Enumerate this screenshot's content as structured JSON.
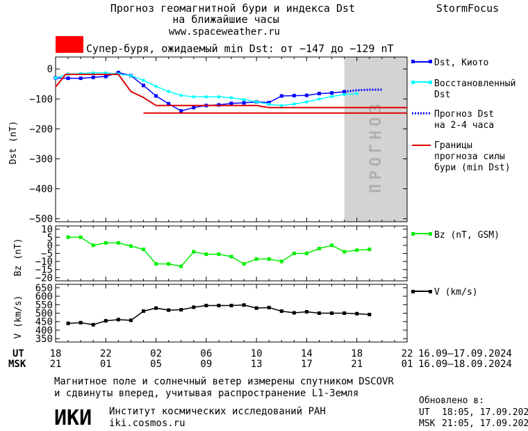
{
  "header": {
    "title_line1": "Прогноз геомагнитной бури и индекса Dst",
    "title_line2": "на ближайшие часы",
    "website": "www.spaceweather.ru",
    "brand": "StormFocus"
  },
  "alert": {
    "label": "Супер-буря, ожидаемый min Dst: от −147 до −129 nT",
    "color": "#ff0000"
  },
  "colors": {
    "dst_kyoto": "#0000ff",
    "dst_reconstructed": "#00ffff",
    "dst_forecast": "#0000ff",
    "limits": "#dd0000",
    "bz": "#00ee00",
    "v": "#000000",
    "forecast_zone": "#d3d3d3",
    "forecast_zone_text": "#b0b0b0"
  },
  "forecast_zone_label": "ПРОГНОЗ",
  "legend": {
    "dst_kyoto": "Dst, Киото",
    "dst_reconstructed_1": "Восстановленный",
    "dst_reconstructed_2": "Dst",
    "forecast_1": "Прогноз Dst",
    "forecast_2": "на 2-4 часа",
    "limits_1": "Границы",
    "limits_2": "прогноза силы",
    "limits_3": "бури (min Dst)",
    "bz": "Bz (nT, GSM)",
    "v": "V (km/s)"
  },
  "time_axis": {
    "ut_label": "UT",
    "msk_label": "MSK",
    "ut_ticks": [
      "18",
      "22",
      "02",
      "06",
      "10",
      "14",
      "18",
      "22"
    ],
    "msk_ticks": [
      "21",
      "01",
      "05",
      "09",
      "13",
      "17",
      "21",
      "01"
    ],
    "ut_range": "16.09–17.09.2024",
    "msk_range": "16.09–18.09.2024"
  },
  "chart_data": [
    {
      "type": "line",
      "panel": "dst",
      "ylabel": "Dst (nT)",
      "ylim": [
        -510,
        40
      ],
      "yticks": [
        0,
        -100,
        -200,
        -300,
        -400,
        -500
      ],
      "x_unit": "hours UT from 18:00 on 16.09.2024",
      "xlim": [
        0,
        28
      ],
      "forecast_zone": [
        23,
        28
      ],
      "series": [
        {
          "name": "Dst, Киото",
          "x": [
            0,
            1,
            2,
            3,
            4,
            5,
            6,
            7,
            8,
            9,
            10,
            11,
            12,
            13,
            14,
            15,
            16,
            17,
            18,
            19,
            20,
            21,
            22,
            23
          ],
          "y": [
            -30,
            -31,
            -31,
            -28,
            -25,
            -12,
            -22,
            -55,
            -90,
            -116,
            -140,
            -129,
            -122,
            -120,
            -115,
            -113,
            -110,
            -112,
            -90,
            -89,
            -88,
            -82,
            -80,
            -76
          ]
        },
        {
          "name": "Восстановленный Dst",
          "x": [
            0,
            1,
            2,
            3,
            4,
            5,
            6,
            7,
            8,
            9,
            10,
            11,
            12,
            13,
            14,
            15,
            16,
            17,
            18,
            19,
            20,
            21,
            22,
            23,
            24
          ],
          "y": [
            -30,
            -17,
            -15,
            -13,
            -13,
            -17,
            -22,
            -38,
            -58,
            -75,
            -88,
            -93,
            -93,
            -93,
            -96,
            -102,
            -110,
            -118,
            -122,
            -117,
            -110,
            -100,
            -92,
            -85,
            -82
          ]
        },
        {
          "name": "Прогноз Dst на 2-4 часа",
          "x": [
            23,
            24,
            25,
            26
          ],
          "y": [
            -76,
            -71,
            -69,
            -69
          ]
        },
        {
          "name": "Границы прогноза силы бури (min Dst)",
          "x": [
            0,
            0.8,
            2,
            3,
            4,
            5,
            6,
            7,
            8,
            9,
            10,
            11,
            12,
            13,
            14,
            15,
            16,
            17,
            18,
            19,
            20,
            21,
            22,
            23,
            24,
            25,
            26,
            27,
            28
          ],
          "y": [
            -60,
            -18,
            -18,
            -18,
            -18,
            -18,
            -75,
            -95,
            -122,
            -122,
            -122,
            -122,
            -122,
            -122,
            -122,
            -122,
            -122,
            -129,
            -129,
            -129,
            -129,
            -129,
            -129,
            -129,
            -129,
            -129,
            -129,
            -129,
            -129
          ]
        },
        {
          "name": "Границы прогноза силы бури (min Dst) нижняя",
          "x": [
            7,
            28
          ],
          "y": [
            -147,
            -147
          ]
        }
      ]
    },
    {
      "type": "line",
      "panel": "bz",
      "ylabel": "Bz (nT)",
      "ylim": [
        -22,
        12
      ],
      "yticks": [
        10,
        5,
        0,
        -5,
        -10,
        -15,
        -20
      ],
      "xlim": [
        0,
        28
      ],
      "series": [
        {
          "name": "Bz (nT, GSM)",
          "x": [
            1,
            2,
            3,
            4,
            5,
            6,
            7,
            8,
            9,
            10,
            11,
            12,
            13,
            14,
            15,
            16,
            17,
            18,
            19,
            20,
            21,
            22,
            23,
            24,
            25
          ],
          "y": [
            5,
            5,
            0,
            1.5,
            1.5,
            -0.5,
            -2.5,
            -11.5,
            -11.5,
            -13,
            -4,
            -5.5,
            -5.5,
            -7,
            -11.5,
            -8.5,
            -8.5,
            -10,
            -5,
            -5,
            -2,
            0,
            -4,
            -3,
            -2.5
          ]
        }
      ]
    },
    {
      "type": "line",
      "panel": "v",
      "ylabel": "V (km/s)",
      "ylim": [
        330,
        670
      ],
      "yticks": [
        350,
        400,
        450,
        500,
        550,
        600,
        650
      ],
      "xlim": [
        0,
        28
      ],
      "series": [
        {
          "name": "V (km/s)",
          "x": [
            1,
            2,
            3,
            4,
            5,
            6,
            7,
            8,
            9,
            10,
            11,
            12,
            13,
            14,
            15,
            16,
            17,
            18,
            19,
            20,
            21,
            22,
            23,
            24,
            25
          ],
          "y": [
            440,
            444,
            432,
            455,
            462,
            458,
            512,
            530,
            518,
            520,
            535,
            545,
            545,
            545,
            548,
            530,
            533,
            512,
            502,
            508,
            500,
            500,
            500,
            497,
            492
          ]
        }
      ]
    }
  ],
  "footer": {
    "text_line1": "Магнитное поле и солнечный ветер измерены спутником DSCOVR",
    "text_line2": "и сдвинуты вперед, учитывая распространение L1-Земля",
    "logo": "ИКИ",
    "institute": "Институт космических исследований РАН",
    "institute_url": "iki.cosmos.ru",
    "updated_label": "Обновлено в:",
    "updated_ut_label": "UT",
    "updated_ut_value": "18:05, 17.09.2024",
    "updated_msk_label": "MSK",
    "updated_msk_value": "21:05, 17.09.2024"
  }
}
